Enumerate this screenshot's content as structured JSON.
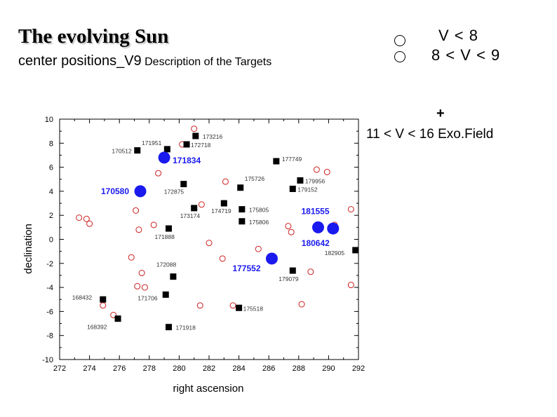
{
  "header": {
    "title": "The evolving Sun",
    "subtitle_main": "center positions_V9",
    "subtitle_small": " Description of the Targets"
  },
  "legend": {
    "item1": "V < 8",
    "item2": "8 < V < 9",
    "plus": "+",
    "item3": "11 < V < 16  Exo.Field"
  },
  "colors": {
    "blue": "#1a1aee",
    "red": "#cc1f1f",
    "black": "#000000",
    "label_gray": "#333333"
  },
  "chart_data": {
    "type": "scatter",
    "xlabel": "right ascension",
    "ylabel": "declination",
    "xlim": [
      272,
      292
    ],
    "ylim": [
      -10,
      10
    ],
    "xticks": [
      272,
      274,
      276,
      278,
      280,
      282,
      284,
      286,
      288,
      290,
      292
    ],
    "yticks": [
      -10,
      -8,
      -6,
      -4,
      -2,
      0,
      2,
      4,
      6,
      8,
      10
    ],
    "grid": false,
    "blue_stars": [
      {
        "label": "171834",
        "x": 279.0,
        "y": 6.8
      },
      {
        "label": "170580",
        "x": 277.4,
        "y": 4.0
      },
      {
        "label": "181555",
        "x": 289.3,
        "y": 1.0
      },
      {
        "label": "180642",
        "x": 290.3,
        "y": 0.9
      },
      {
        "label": "177552",
        "x": 286.2,
        "y": -1.6
      }
    ],
    "exo_field": [
      {
        "label": "173216",
        "x": 281.1,
        "y": 8.6
      },
      {
        "label": "171951",
        "x": 279.2,
        "y": 7.5
      },
      {
        "label": "170512",
        "x": 277.2,
        "y": 7.4
      },
      {
        "label": "172718",
        "x": 280.5,
        "y": 7.9
      },
      {
        "label": "177749",
        "x": 286.5,
        "y": 6.5
      },
      {
        "label": "179956",
        "x": 288.1,
        "y": 4.9
      },
      {
        "label": "175726",
        "x": 284.1,
        "y": 4.3
      },
      {
        "label": "179152",
        "x": 287.6,
        "y": 4.2
      },
      {
        "label": "172875",
        "x": 280.3,
        "y": 4.6
      },
      {
        "label": "174719",
        "x": 283.0,
        "y": 3.0
      },
      {
        "label": "175805",
        "x": 284.2,
        "y": 2.5
      },
      {
        "label": "173174",
        "x": 281.0,
        "y": 2.6
      },
      {
        "label": "175806",
        "x": 284.2,
        "y": 1.5
      },
      {
        "label": "171888",
        "x": 279.3,
        "y": 0.9
      },
      {
        "label": "182905",
        "x": 291.8,
        "y": -0.9
      },
      {
        "label": "172088",
        "x": 279.6,
        "y": -3.1
      },
      {
        "label": "179079",
        "x": 287.6,
        "y": -2.6
      },
      {
        "label": "171706",
        "x": 279.1,
        "y": -4.6
      },
      {
        "label": "168432",
        "x": 274.9,
        "y": -5.0
      },
      {
        "label": "175518",
        "x": 284.0,
        "y": -5.7
      },
      {
        "label": "168392",
        "x": 275.9,
        "y": -6.6
      },
      {
        "label": "171918",
        "x": 279.3,
        "y": -7.3
      }
    ],
    "v8_9_stars": [
      {
        "x": 281.0,
        "y": 9.2
      },
      {
        "x": 280.2,
        "y": 7.9
      },
      {
        "x": 278.6,
        "y": 5.5
      },
      {
        "x": 289.2,
        "y": 5.8
      },
      {
        "x": 289.9,
        "y": 5.6
      },
      {
        "x": 283.1,
        "y": 4.8
      },
      {
        "x": 281.5,
        "y": 2.9
      },
      {
        "x": 277.1,
        "y": 2.4
      },
      {
        "x": 291.5,
        "y": 2.5
      },
      {
        "x": 273.3,
        "y": 1.8
      },
      {
        "x": 273.8,
        "y": 1.7
      },
      {
        "x": 274.0,
        "y": 1.3
      },
      {
        "x": 278.3,
        "y": 1.2
      },
      {
        "x": 277.3,
        "y": 0.8
      },
      {
        "x": 287.3,
        "y": 1.1
      },
      {
        "x": 287.5,
        "y": 0.6
      },
      {
        "x": 290.4,
        "y": 1.2
      },
      {
        "x": 282.0,
        "y": -0.3
      },
      {
        "x": 285.3,
        "y": -0.8
      },
      {
        "x": 276.8,
        "y": -1.5
      },
      {
        "x": 282.9,
        "y": -1.6
      },
      {
        "x": 277.5,
        "y": -2.8
      },
      {
        "x": 288.8,
        "y": -2.7
      },
      {
        "x": 277.2,
        "y": -3.9
      },
      {
        "x": 277.7,
        "y": -4.0
      },
      {
        "x": 291.5,
        "y": -3.8
      },
      {
        "x": 274.9,
        "y": -5.5
      },
      {
        "x": 281.4,
        "y": -5.5
      },
      {
        "x": 283.6,
        "y": -5.5
      },
      {
        "x": 288.2,
        "y": -5.4
      },
      {
        "x": 275.6,
        "y": -6.3
      }
    ]
  }
}
